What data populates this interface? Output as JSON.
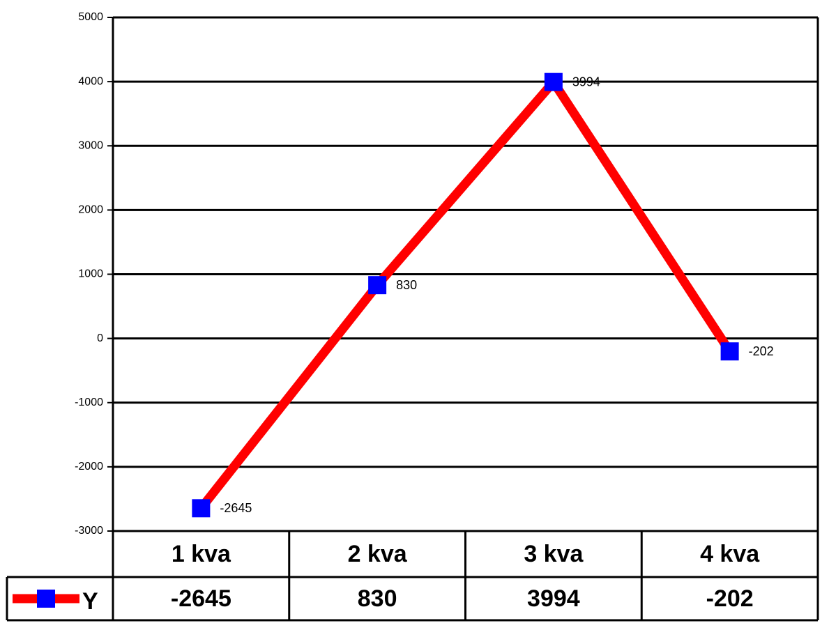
{
  "chart_data": {
    "type": "line",
    "categories": [
      "1 kva",
      "2 kva",
      "3 kva",
      "4 kva"
    ],
    "series": [
      {
        "name": "Y",
        "color": "#ff0000",
        "marker_color": "#0000ff",
        "values": [
          -2645,
          830,
          3994,
          -202
        ]
      }
    ],
    "ylim": [
      -3000,
      5000
    ],
    "yticks": [
      -3000,
      -2000,
      -1000,
      0,
      1000,
      2000,
      3000,
      4000,
      5000
    ],
    "grid": true,
    "data_table": true
  }
}
